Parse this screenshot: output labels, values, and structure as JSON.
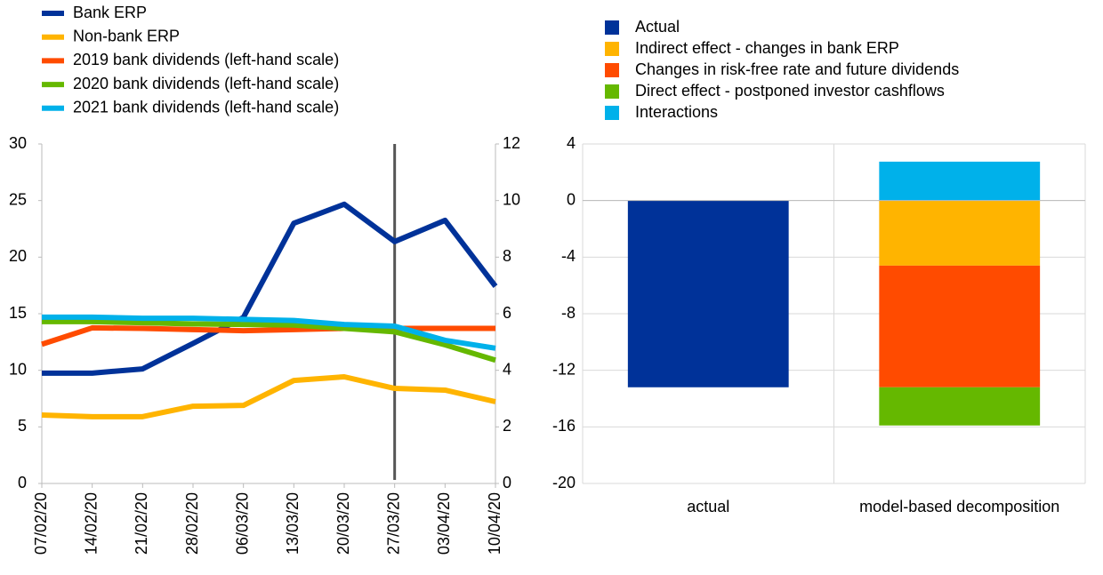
{
  "chart_data": [
    {
      "type": "line",
      "categories": [
        "07/02/20",
        "14/02/20",
        "21/02/20",
        "28/02/20",
        "06/03/20",
        "13/03/20",
        "20/03/20",
        "27/03/20",
        "03/04/20",
        "10/04/20"
      ],
      "series": [
        {
          "name": "Bank ERP",
          "color": "#003299",
          "axis": "y2",
          "values": [
            3.9,
            3.9,
            4.05,
            4.95,
            5.87,
            9.2,
            9.87,
            8.55,
            9.3,
            6.97
          ]
        },
        {
          "name": "Non-bank ERP",
          "color": "#ffb400",
          "axis": "y2",
          "values": [
            2.42,
            2.36,
            2.36,
            2.73,
            2.76,
            3.64,
            3.77,
            3.36,
            3.3,
            2.89
          ]
        },
        {
          "name": "2019 bank dividends (left-hand scale)",
          "color": "#ff4b00",
          "values": [
            12.3,
            13.75,
            13.7,
            13.6,
            13.5,
            13.6,
            13.7,
            13.7,
            13.7,
            13.7
          ]
        },
        {
          "name": "2020 bank dividends (left-hand scale)",
          "color": "#65b800",
          "values": [
            14.3,
            14.3,
            14.2,
            14.1,
            14.05,
            14.0,
            13.7,
            13.4,
            12.25,
            10.9
          ]
        },
        {
          "name": "2021 bank dividends (left-hand scale)",
          "color": "#00b1ea",
          "values": [
            14.7,
            14.7,
            14.6,
            14.6,
            14.5,
            14.4,
            14.05,
            13.9,
            12.65,
            11.95
          ]
        }
      ],
      "ylim": [
        0,
        30
      ],
      "yticks": [
        0,
        5,
        10,
        15,
        20,
        25,
        30
      ],
      "y2lim": [
        0,
        12
      ],
      "y2ticks": [
        0,
        2,
        4,
        6,
        8,
        10,
        12
      ],
      "vline": "27/03/20"
    },
    {
      "type": "stacked_bar",
      "categories": [
        "actual",
        "model-based decomposition"
      ],
      "series": [
        {
          "name": "Actual",
          "color": "#003299",
          "values": [
            -13.2,
            null
          ]
        },
        {
          "name": "Indirect effect - changes in bank ERP",
          "color": "#ffb400",
          "values": [
            null,
            -4.6
          ]
        },
        {
          "name": "Changes in risk-free rate and future dividends",
          "color": "#ff4b00",
          "values": [
            null,
            -8.6
          ]
        },
        {
          "name": "Direct effect - postponed investor cashflows",
          "color": "#65b800",
          "values": [
            null,
            -2.7
          ]
        },
        {
          "name": "Interactions",
          "color": "#00b1ea",
          "values": [
            null,
            2.75
          ]
        }
      ],
      "ylim": [
        -20,
        4
      ],
      "yticks": [
        -20,
        -16,
        -12,
        -8,
        -4,
        0,
        4
      ],
      "grid": true
    }
  ]
}
